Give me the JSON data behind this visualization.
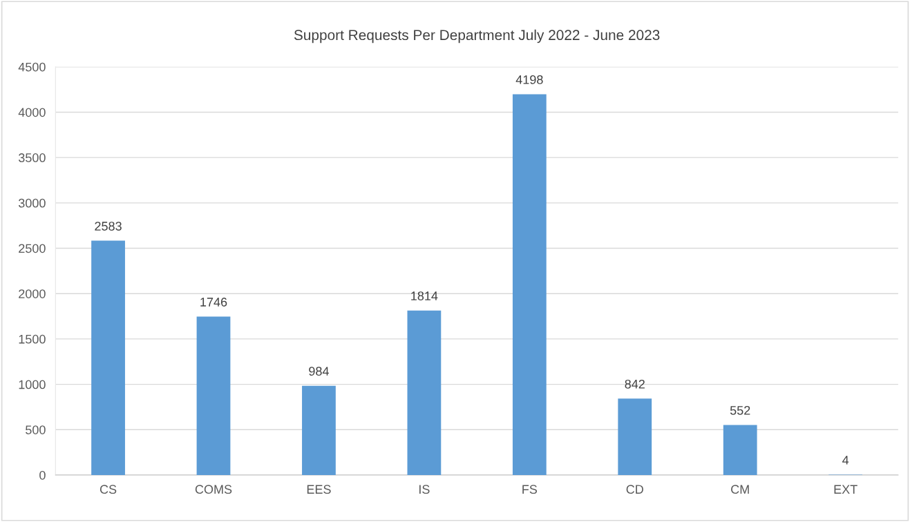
{
  "chart_data": {
    "type": "bar",
    "title": "Support Requests Per Department July 2022 - June 2023",
    "categories": [
      "CS",
      "COMS",
      "EES",
      "IS",
      "FS",
      "CD",
      "CM",
      "EXT"
    ],
    "values": [
      2583,
      1746,
      984,
      1814,
      4198,
      842,
      552,
      4
    ],
    "color": "#5b9bd5",
    "ylim": [
      0,
      4500
    ],
    "yticks": [
      0,
      500,
      1000,
      1500,
      2000,
      2500,
      3000,
      3500,
      4000,
      4500
    ],
    "grid": "y",
    "data_labels": true,
    "legend": false
  }
}
